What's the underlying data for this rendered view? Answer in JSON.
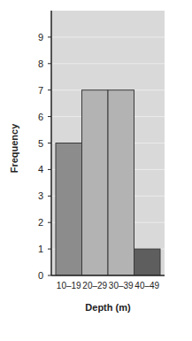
{
  "chart_data": {
    "type": "bar",
    "x_label": "Depth (m)",
    "y_label": "Frequency",
    "categories": [
      "10–19",
      "20–29",
      "30–39",
      "40–49"
    ],
    "values": [
      5,
      7,
      7,
      1
    ],
    "colors": [
      "#8c8c8c",
      "#b3b3b3",
      "#b3b3b3",
      "#5e5e5e"
    ],
    "ylim": [
      0,
      10
    ],
    "yticks": [
      0,
      1,
      2,
      3,
      4,
      5,
      6,
      7,
      8,
      9
    ],
    "grid": true
  }
}
